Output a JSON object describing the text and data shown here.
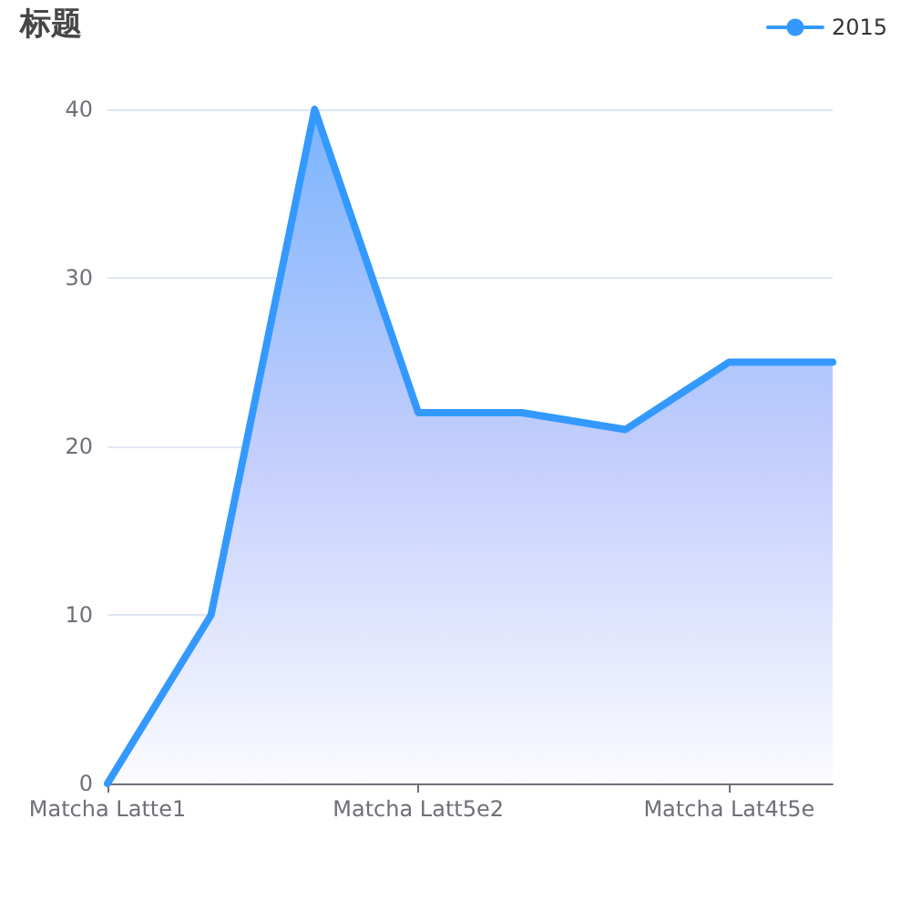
{
  "chart_data": {
    "type": "area",
    "title": "标题",
    "categories": [
      "Matcha Latte1",
      null,
      null,
      "Matcha Latt5e2",
      null,
      null,
      "Matcha Lat4t5e",
      null
    ],
    "series": [
      {
        "name": "2015",
        "color": "#3399ff",
        "values": [
          0,
          10,
          40,
          22,
          22,
          21,
          25,
          25
        ]
      }
    ],
    "ylim": [
      0,
      40
    ],
    "yticks": [
      0,
      10,
      20,
      30,
      40
    ],
    "grid": "y",
    "legend": "top right",
    "marker": "none"
  }
}
